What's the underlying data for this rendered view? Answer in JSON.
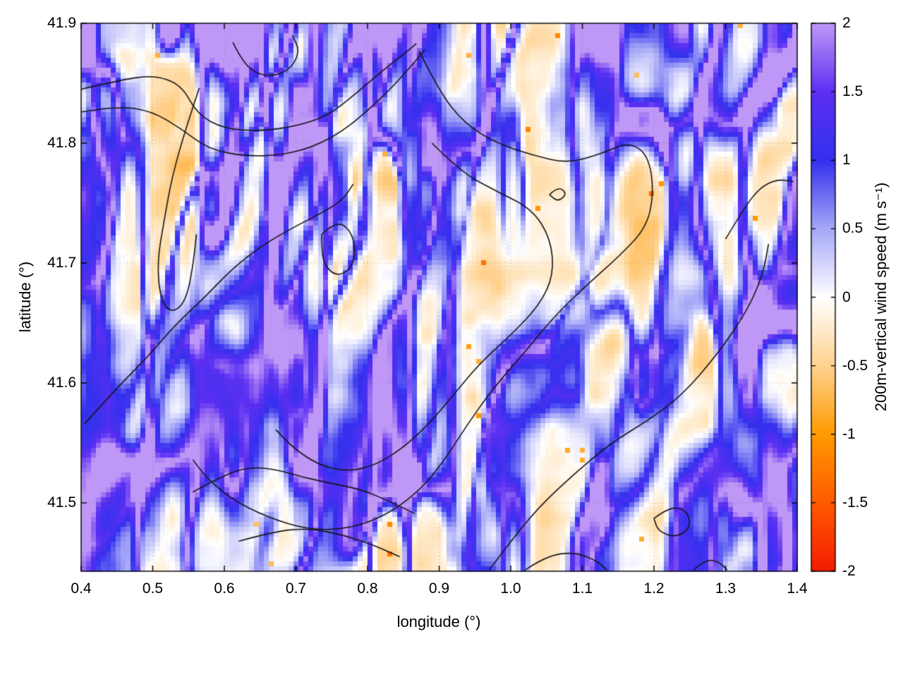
{
  "figure": {
    "background": "#ffffff"
  },
  "chart_data": {
    "type": "heatmap",
    "title": "",
    "xlabel": "longitude (°)",
    "ylabel": "latitude (°)",
    "x_range": [
      0.4,
      1.4
    ],
    "y_range": [
      41.443,
      41.9
    ],
    "x_ticks": [
      0.4,
      0.5,
      0.6,
      0.7,
      0.8,
      0.9,
      1.0,
      1.1,
      1.2,
      1.3,
      1.4
    ],
    "x_tick_labels": [
      "0.4",
      "0.5",
      "0.6",
      "0.7",
      "0.8",
      "0.9",
      "1.0",
      "1.1",
      "1.2",
      "1.3",
      "1.4"
    ],
    "y_ticks": [
      41.5,
      41.6,
      41.7,
      41.8,
      41.9
    ],
    "y_tick_labels": [
      "41.5",
      "41.6",
      "41.7",
      "41.8",
      "41.9"
    ],
    "grid": true,
    "colorbar": {
      "label": "200m-vertical wind speed (m s⁻¹)",
      "range": [
        -2,
        2
      ],
      "ticks": [
        -2,
        -1.5,
        -1,
        -0.5,
        0,
        0.5,
        1,
        1.5,
        2
      ],
      "tick_labels": [
        "-2",
        "-1.5",
        "-1",
        "-0.5",
        "0",
        "0.5",
        "1",
        "1.5",
        "2"
      ],
      "color_stops": [
        {
          "v": -2.0,
          "c": "#f21b00"
        },
        {
          "v": -1.5,
          "c": "#ff5a00"
        },
        {
          "v": -1.0,
          "c": "#ff9a00"
        },
        {
          "v": -0.5,
          "c": "#ffd28f"
        },
        {
          "v": 0.0,
          "c": "#ffffff"
        },
        {
          "v": 0.5,
          "c": "#a6a8f7"
        },
        {
          "v": 1.0,
          "c": "#3330ee"
        },
        {
          "v": 1.5,
          "c": "#5c2ff2"
        },
        {
          "v": 2.0,
          "c": "#bf97f6"
        }
      ]
    },
    "field_description": "Pixelated 2D field of 200 m vertical wind speed over NE Spain: mostly weak downdrafts (-0.5 to 0 m/s, orange/white) with narrow quasi-vertical filaments of updrafts (0.5 to 2 m/s, blue/purple), a calm pale plateau near lon 0.95-1.15 / lat 41.65-41.8, and dense streaks along the top edge; exact cell values not readable, reproduced procedurally.",
    "noise": {
      "seed": 7,
      "cells_x": 145,
      "cells_y": 111
    },
    "contours": {
      "color": "#161616",
      "polylines": [
        [
          [
            0.4,
            41.845
          ],
          [
            0.45,
            41.852
          ],
          [
            0.5,
            41.857
          ],
          [
            0.54,
            41.849
          ],
          [
            0.562,
            41.824
          ],
          [
            0.6,
            41.812
          ],
          [
            0.65,
            41.81
          ],
          [
            0.7,
            41.814
          ],
          [
            0.745,
            41.823
          ],
          [
            0.785,
            41.842
          ],
          [
            0.82,
            41.86
          ],
          [
            0.85,
            41.874
          ],
          [
            0.868,
            41.883
          ]
        ],
        [
          [
            0.4,
            41.826
          ],
          [
            0.45,
            41.831
          ],
          [
            0.498,
            41.827
          ],
          [
            0.54,
            41.812
          ],
          [
            0.578,
            41.795
          ],
          [
            0.63,
            41.789
          ],
          [
            0.68,
            41.79
          ],
          [
            0.725,
            41.797
          ],
          [
            0.765,
            41.81
          ],
          [
            0.8,
            41.827
          ],
          [
            0.835,
            41.847
          ],
          [
            0.862,
            41.865
          ],
          [
            0.88,
            41.878
          ]
        ],
        [
          [
            0.612,
            41.884
          ],
          [
            0.628,
            41.864
          ],
          [
            0.658,
            41.855
          ],
          [
            0.69,
            41.86
          ],
          [
            0.706,
            41.876
          ],
          [
            0.695,
            41.89
          ]
        ],
        [
          [
            0.872,
            41.877
          ],
          [
            0.9,
            41.843
          ],
          [
            0.936,
            41.816
          ],
          [
            0.98,
            41.8
          ],
          [
            1.03,
            41.79
          ],
          [
            1.08,
            41.783
          ],
          [
            1.13,
            41.792
          ],
          [
            1.165,
            41.801
          ],
          [
            1.192,
            41.79
          ],
          [
            1.2,
            41.76
          ],
          [
            1.19,
            41.73
          ],
          [
            1.152,
            41.706
          ],
          [
            1.103,
            41.68
          ],
          [
            1.06,
            41.655
          ],
          [
            1.02,
            41.626
          ],
          [
            0.976,
            41.596
          ],
          [
            0.94,
            41.566
          ],
          [
            0.908,
            41.536
          ],
          [
            0.874,
            41.511
          ],
          [
            0.83,
            41.491
          ],
          [
            0.78,
            41.479
          ],
          [
            0.72,
            41.477
          ],
          [
            0.66,
            41.488
          ],
          [
            0.61,
            41.503
          ],
          [
            0.575,
            41.521
          ],
          [
            0.556,
            41.536
          ]
        ],
        [
          [
            0.89,
            41.8
          ],
          [
            0.93,
            41.776
          ],
          [
            0.98,
            41.76
          ],
          [
            1.03,
            41.745
          ],
          [
            1.056,
            41.72
          ],
          [
            1.06,
            41.69
          ],
          [
            1.04,
            41.665
          ],
          [
            1.002,
            41.641
          ],
          [
            0.956,
            41.616
          ],
          [
            0.92,
            41.59
          ],
          [
            0.886,
            41.566
          ],
          [
            0.85,
            41.546
          ],
          [
            0.81,
            41.531
          ],
          [
            0.77,
            41.526
          ],
          [
            0.73,
            41.532
          ],
          [
            0.696,
            41.546
          ],
          [
            0.672,
            41.561
          ]
        ],
        [
          [
            0.565,
            41.846
          ],
          [
            0.546,
            41.812
          ],
          [
            0.527,
            41.772
          ],
          [
            0.516,
            41.736
          ],
          [
            0.506,
            41.7
          ],
          [
            0.511,
            41.669
          ],
          [
            0.527,
            41.658
          ],
          [
            0.546,
            41.668
          ],
          [
            0.556,
            41.696
          ],
          [
            0.561,
            41.724
          ]
        ],
        [
          [
            0.405,
            41.566
          ],
          [
            0.45,
            41.596
          ],
          [
            0.492,
            41.621
          ],
          [
            0.532,
            41.649
          ],
          [
            0.572,
            41.671
          ],
          [
            0.612,
            41.696
          ],
          [
            0.656,
            41.716
          ],
          [
            0.7,
            41.731
          ],
          [
            0.74,
            41.743
          ],
          [
            0.766,
            41.753
          ],
          [
            0.78,
            41.766
          ]
        ],
        [
          [
            0.736,
            41.724
          ],
          [
            0.756,
            41.735
          ],
          [
            0.776,
            41.728
          ],
          [
            0.784,
            41.71
          ],
          [
            0.776,
            41.694
          ],
          [
            0.755,
            41.689
          ],
          [
            0.738,
            41.7
          ],
          [
            0.736,
            41.716
          ],
          [
            0.736,
            41.724
          ]
        ],
        [
          [
            0.556,
            41.509
          ],
          [
            0.592,
            41.521
          ],
          [
            0.632,
            41.53
          ],
          [
            0.672,
            41.528
          ],
          [
            0.712,
            41.521
          ],
          [
            0.752,
            41.516
          ],
          [
            0.792,
            41.511
          ],
          [
            0.832,
            41.501
          ],
          [
            0.866,
            41.491
          ]
        ],
        [
          [
            0.62,
            41.468
          ],
          [
            0.668,
            41.476
          ],
          [
            0.716,
            41.479
          ],
          [
            0.768,
            41.473
          ],
          [
            0.812,
            41.464
          ],
          [
            0.845,
            41.455
          ]
        ],
        [
          [
            0.97,
            41.444
          ],
          [
            1.0,
            41.468
          ],
          [
            1.04,
            41.497
          ],
          [
            1.09,
            41.525
          ],
          [
            1.14,
            41.55
          ],
          [
            1.19,
            41.568
          ],
          [
            1.24,
            41.59
          ],
          [
            1.29,
            41.625
          ],
          [
            1.33,
            41.66
          ],
          [
            1.352,
            41.69
          ],
          [
            1.36,
            41.716
          ]
        ],
        [
          [
            1.3,
            41.72
          ],
          [
            1.326,
            41.746
          ],
          [
            1.348,
            41.763
          ],
          [
            1.372,
            41.77
          ],
          [
            1.395,
            41.768
          ]
        ],
        [
          [
            1.2,
            41.487
          ],
          [
            1.222,
            41.497
          ],
          [
            1.246,
            41.494
          ],
          [
            1.252,
            41.48
          ],
          [
            1.232,
            41.471
          ],
          [
            1.206,
            41.476
          ],
          [
            1.2,
            41.487
          ]
        ],
        [
          [
            1.054,
            41.757
          ],
          [
            1.066,
            41.764
          ],
          [
            1.079,
            41.758
          ],
          [
            1.066,
            41.751
          ],
          [
            1.054,
            41.757
          ]
        ],
        [
          [
            1.02,
            41.444
          ],
          [
            1.05,
            41.456
          ],
          [
            1.09,
            41.459
          ],
          [
            1.122,
            41.451
          ],
          [
            1.134,
            41.444
          ]
        ],
        [
          [
            1.255,
            41.444
          ],
          [
            1.272,
            41.453
          ],
          [
            1.291,
            41.451
          ],
          [
            1.302,
            41.444
          ]
        ]
      ]
    }
  }
}
